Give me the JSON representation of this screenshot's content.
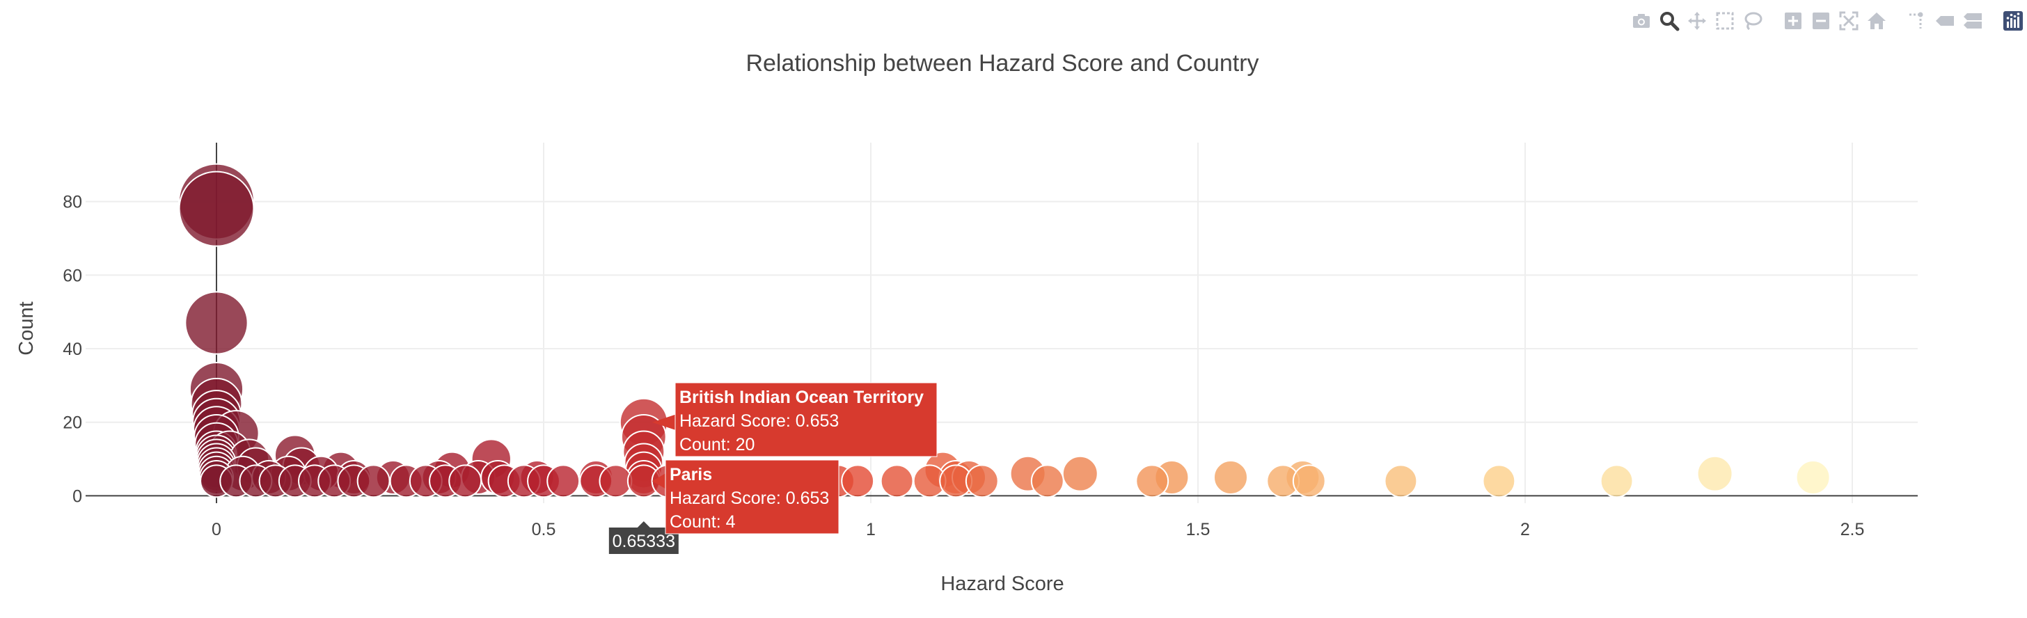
{
  "modebar": {
    "buttons": [
      {
        "name": "camera-icon",
        "group": 0
      },
      {
        "name": "zoom-icon",
        "group": 0,
        "active": true
      },
      {
        "name": "pan-icon",
        "group": 0
      },
      {
        "name": "box-select-icon",
        "group": 0
      },
      {
        "name": "lasso-select-icon",
        "group": 0
      },
      {
        "name": "zoom-in-icon",
        "group": 1
      },
      {
        "name": "zoom-out-icon",
        "group": 1
      },
      {
        "name": "autoscale-icon",
        "group": 1
      },
      {
        "name": "reset-axes-icon",
        "group": 1
      },
      {
        "name": "spike-lines-icon",
        "group": 2
      },
      {
        "name": "hover-closest-icon",
        "group": 2
      },
      {
        "name": "hover-compare-icon",
        "group": 2
      },
      {
        "name": "plotly-logo-icon",
        "group": 3
      }
    ],
    "colors": {
      "icon": "#c0c4cc",
      "active": "#444444",
      "logo": "#3f4f75"
    }
  },
  "chart_data": {
    "type": "scatter",
    "title": "Relationship between Hazard Score and Country",
    "xlabel": "Hazard Score",
    "ylabel": "Count",
    "xlim": [
      -0.2,
      2.6
    ],
    "ylim": [
      -2,
      96
    ],
    "xticks": [
      0,
      0.5,
      1,
      1.5,
      2,
      2.5
    ],
    "xtick_labels": [
      "0",
      "0.5",
      "1",
      "1.5",
      "2",
      "2.5"
    ],
    "yticks": [
      0,
      20,
      40,
      60,
      80
    ],
    "ytick_labels": [
      "0",
      "20",
      "40",
      "60",
      "80"
    ],
    "grid": true,
    "marker_size_encodes": "Count",
    "colorscale": [
      "#7f1a2e",
      "#b5202e",
      "#e34a33",
      "#f39a5a",
      "#fcd08a",
      "#fff5c0"
    ],
    "color_domain": [
      0,
      2.45
    ],
    "points": [
      {
        "x": 0.0,
        "y": 80
      },
      {
        "x": 0.0,
        "y": 78
      },
      {
        "x": 0.0,
        "y": 47
      },
      {
        "x": 0.0,
        "y": 29
      },
      {
        "x": 0.0,
        "y": 25
      },
      {
        "x": 0.0,
        "y": 22
      },
      {
        "x": 0.0,
        "y": 20
      },
      {
        "x": 0.0,
        "y": 18
      },
      {
        "x": 0.0,
        "y": 16
      },
      {
        "x": 0.0,
        "y": 14
      },
      {
        "x": 0.0,
        "y": 12
      },
      {
        "x": 0.0,
        "y": 11
      },
      {
        "x": 0.0,
        "y": 10
      },
      {
        "x": 0.0,
        "y": 9
      },
      {
        "x": 0.0,
        "y": 8
      },
      {
        "x": 0.0,
        "y": 7
      },
      {
        "x": 0.0,
        "y": 6
      },
      {
        "x": 0.0,
        "y": 5
      },
      {
        "x": 0.0,
        "y": 4
      },
      {
        "x": 0.03,
        "y": 17
      },
      {
        "x": 0.02,
        "y": 12
      },
      {
        "x": 0.05,
        "y": 10
      },
      {
        "x": 0.06,
        "y": 8
      },
      {
        "x": 0.04,
        "y": 6
      },
      {
        "x": 0.08,
        "y": 5
      },
      {
        "x": 0.12,
        "y": 11
      },
      {
        "x": 0.13,
        "y": 8
      },
      {
        "x": 0.11,
        "y": 6
      },
      {
        "x": 0.03,
        "y": 4
      },
      {
        "x": 0.06,
        "y": 4
      },
      {
        "x": 0.09,
        "y": 4
      },
      {
        "x": 0.12,
        "y": 4
      },
      {
        "x": 0.15,
        "y": 4
      },
      {
        "x": 0.18,
        "y": 4
      },
      {
        "x": 0.16,
        "y": 6
      },
      {
        "x": 0.19,
        "y": 7
      },
      {
        "x": 0.21,
        "y": 5
      },
      {
        "x": 0.21,
        "y": 4
      },
      {
        "x": 0.24,
        "y": 4
      },
      {
        "x": 0.27,
        "y": 5
      },
      {
        "x": 0.29,
        "y": 4
      },
      {
        "x": 0.32,
        "y": 4
      },
      {
        "x": 0.34,
        "y": 5
      },
      {
        "x": 0.35,
        "y": 4
      },
      {
        "x": 0.36,
        "y": 7
      },
      {
        "x": 0.38,
        "y": 4
      },
      {
        "x": 0.4,
        "y": 5
      },
      {
        "x": 0.42,
        "y": 10
      },
      {
        "x": 0.43,
        "y": 5
      },
      {
        "x": 0.44,
        "y": 4
      },
      {
        "x": 0.47,
        "y": 4
      },
      {
        "x": 0.49,
        "y": 5
      },
      {
        "x": 0.5,
        "y": 4
      },
      {
        "x": 0.53,
        "y": 4
      },
      {
        "x": 0.58,
        "y": 4
      },
      {
        "x": 0.58,
        "y": 5
      },
      {
        "x": 0.61,
        "y": 4
      },
      {
        "x": 0.653,
        "y": 20
      },
      {
        "x": 0.653,
        "y": 16
      },
      {
        "x": 0.653,
        "y": 12
      },
      {
        "x": 0.653,
        "y": 9
      },
      {
        "x": 0.653,
        "y": 7
      },
      {
        "x": 0.653,
        "y": 5
      },
      {
        "x": 0.653,
        "y": 4
      },
      {
        "x": 0.69,
        "y": 4
      },
      {
        "x": 0.73,
        "y": 4
      },
      {
        "x": 0.8,
        "y": 5
      },
      {
        "x": 0.84,
        "y": 4
      },
      {
        "x": 0.88,
        "y": 4
      },
      {
        "x": 0.92,
        "y": 4
      },
      {
        "x": 0.95,
        "y": 4
      },
      {
        "x": 0.98,
        "y": 4
      },
      {
        "x": 1.04,
        "y": 4
      },
      {
        "x": 1.09,
        "y": 4
      },
      {
        "x": 1.11,
        "y": 7
      },
      {
        "x": 1.13,
        "y": 5
      },
      {
        "x": 1.13,
        "y": 4
      },
      {
        "x": 1.15,
        "y": 5
      },
      {
        "x": 1.17,
        "y": 4
      },
      {
        "x": 1.24,
        "y": 6
      },
      {
        "x": 1.27,
        "y": 4
      },
      {
        "x": 1.32,
        "y": 6
      },
      {
        "x": 1.43,
        "y": 4
      },
      {
        "x": 1.46,
        "y": 5
      },
      {
        "x": 1.55,
        "y": 5
      },
      {
        "x": 1.63,
        "y": 4
      },
      {
        "x": 1.66,
        "y": 5
      },
      {
        "x": 1.67,
        "y": 4
      },
      {
        "x": 1.81,
        "y": 4
      },
      {
        "x": 1.96,
        "y": 4
      },
      {
        "x": 2.14,
        "y": 4
      },
      {
        "x": 2.29,
        "y": 6
      },
      {
        "x": 2.44,
        "y": 5
      }
    ],
    "hover": {
      "x_label": "0.65333",
      "x": 0.653,
      "tooltips": [
        {
          "title": "British Indian Ocean Territory",
          "line1": "Hazard Score: 0.653",
          "line2": "Count: 20",
          "x": 0.653,
          "y": 20
        },
        {
          "title": "Paris",
          "line1": "Hazard Score: 0.653",
          "line2": "Count: 4",
          "x": 0.653,
          "y": 4
        }
      ],
      "tooltip_color": "#d73a2e",
      "x_label_color": "#444444"
    }
  }
}
